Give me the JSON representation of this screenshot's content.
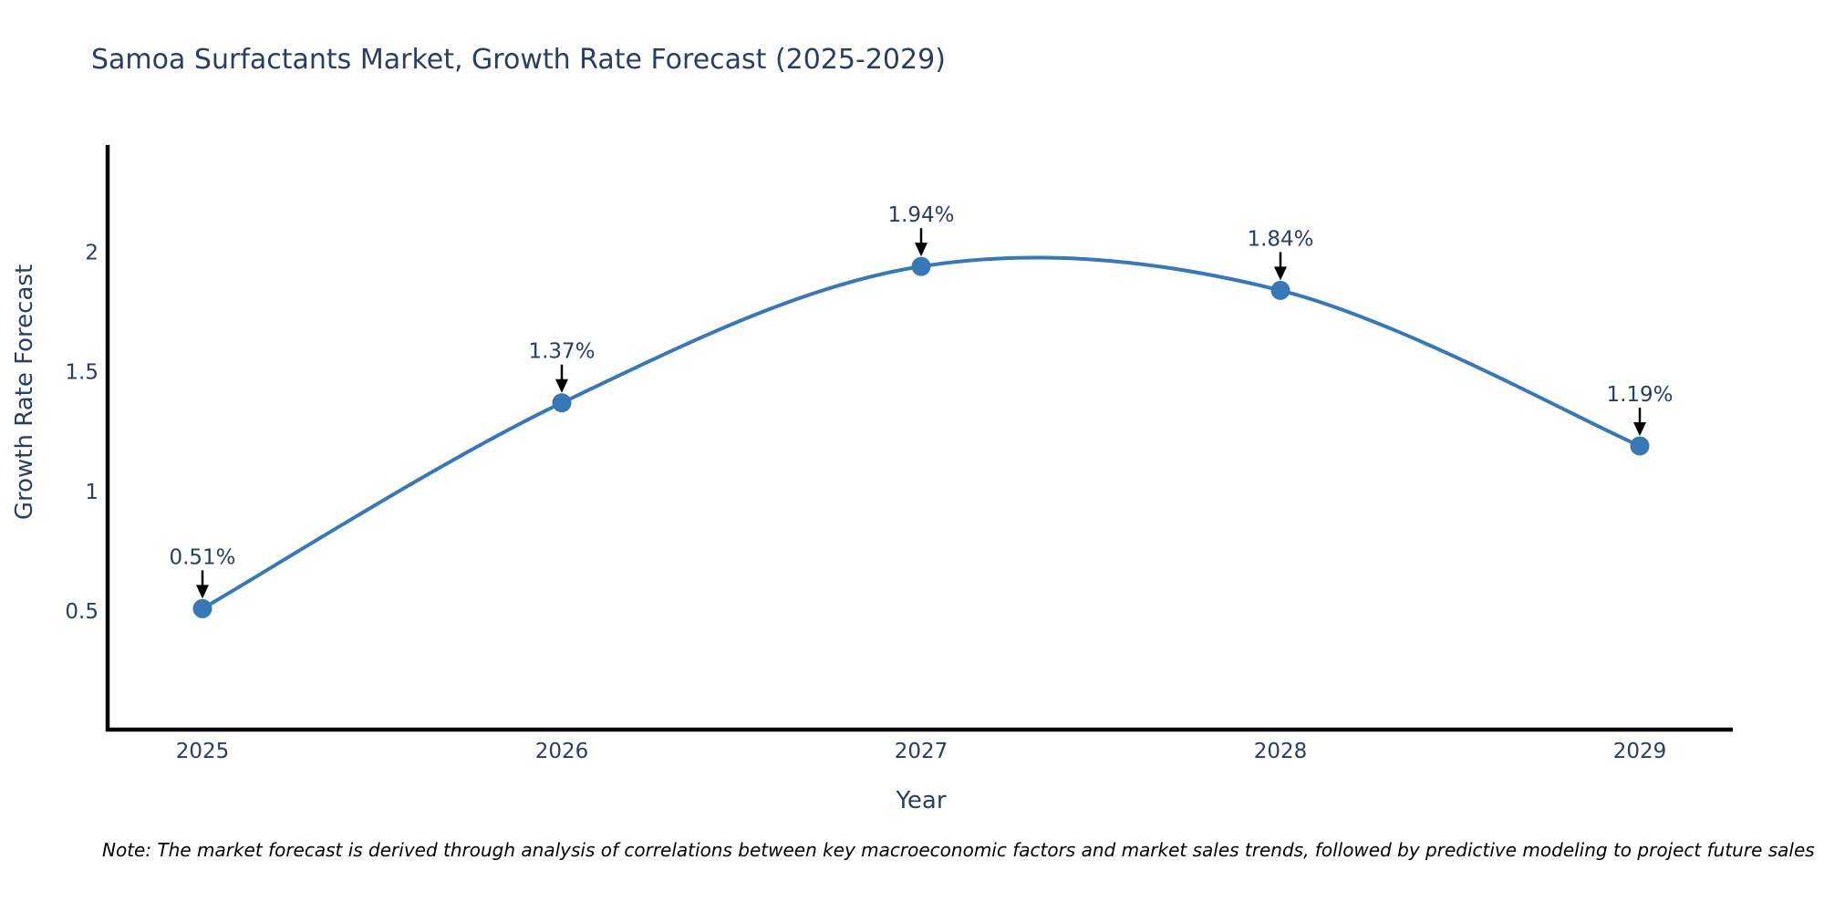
{
  "chart_data": {
    "type": "line",
    "title": "Samoa Surfactants Market, Growth Rate Forecast (2025-2029)",
    "xlabel": "Year",
    "ylabel": "Growth Rate Forecast",
    "x": [
      2025,
      2026,
      2027,
      2028,
      2029
    ],
    "values": [
      0.51,
      1.37,
      1.94,
      1.84,
      1.19
    ],
    "point_labels": [
      "0.51%",
      "1.37%",
      "1.94%",
      "1.84%",
      "1.19%"
    ],
    "x_tick_labels": [
      "2025",
      "2026",
      "2027",
      "2028",
      "2029"
    ],
    "y_ticks": [
      0.5,
      1,
      1.5,
      2
    ],
    "y_tick_labels": [
      "0.5",
      "1",
      "1.5",
      "2"
    ],
    "ylim": [
      0.06,
      2.44
    ],
    "line_shape": "spline",
    "grid": false,
    "legend": false,
    "colors": {
      "line": "#3878b4",
      "marker": "#3878b4",
      "axis": "#000000",
      "text": "#2a3f5f",
      "arrow": "#000000"
    },
    "note": "Note: The market forecast is derived through analysis of correlations between key macroeconomic factors and market sales trends, followed by predictive modeling to project future sales"
  }
}
